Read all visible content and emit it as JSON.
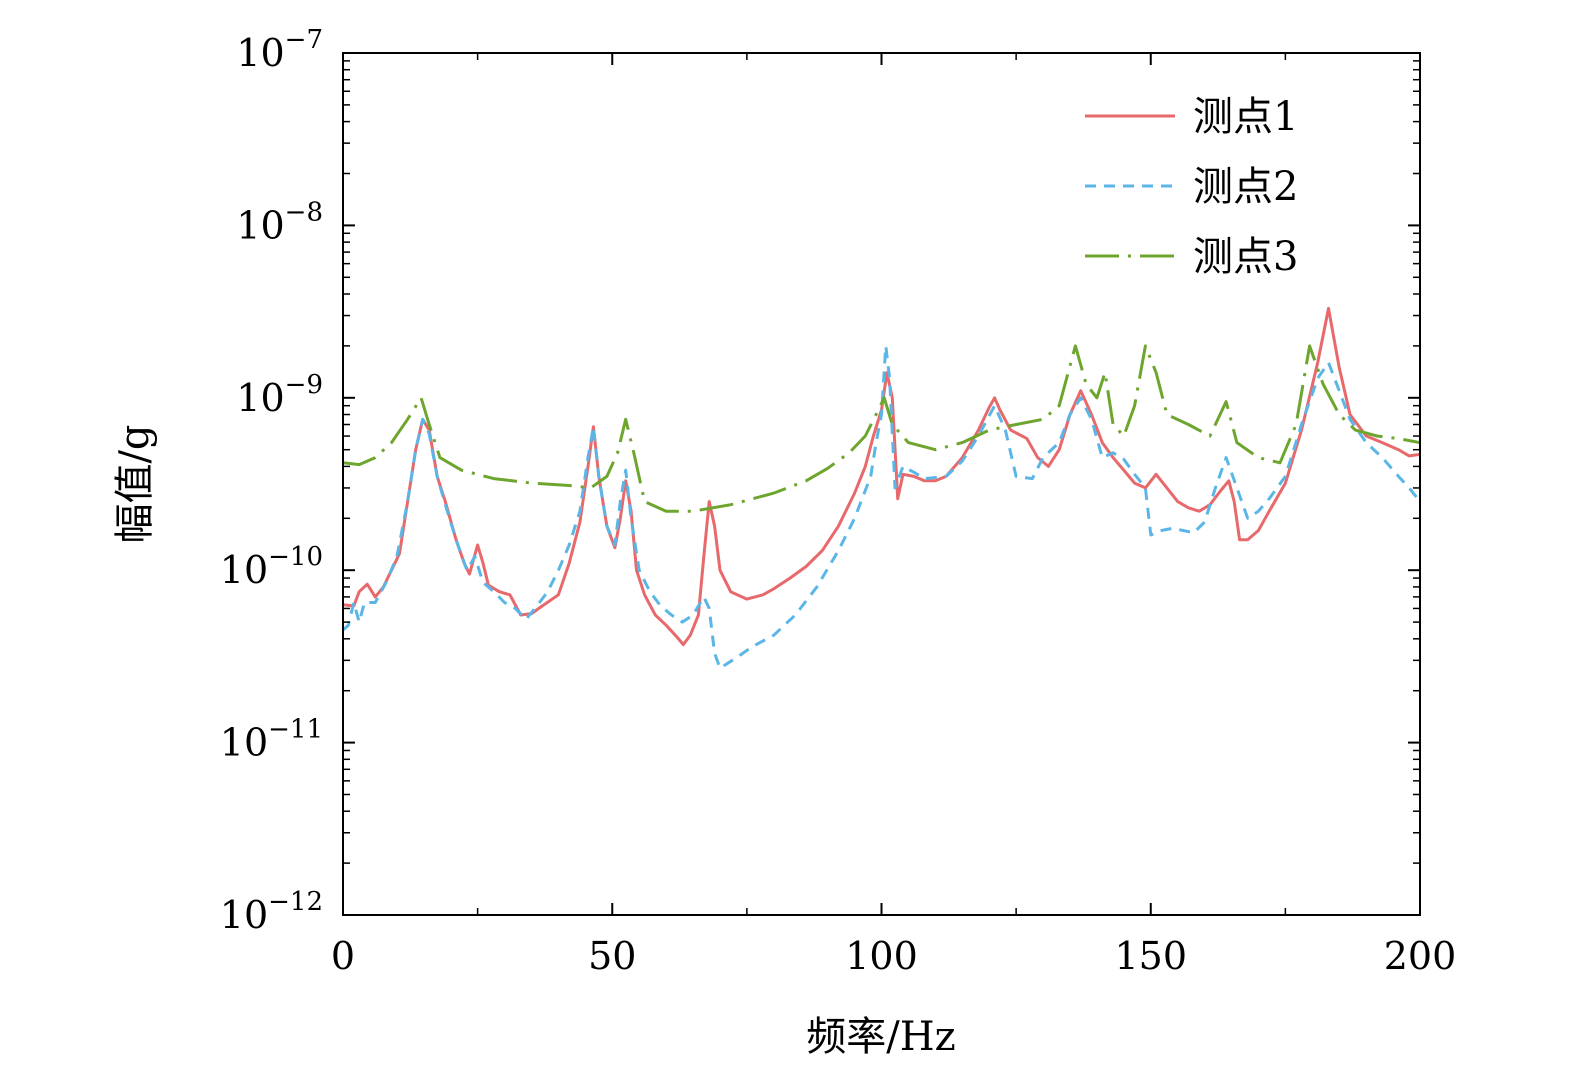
{
  "chart_data": {
    "type": "line",
    "xlabel": "频率/Hz",
    "ylabel": "幅值/g",
    "xlim": [
      0,
      200
    ],
    "ylim": [
      1e-12,
      1e-07
    ],
    "yscale": "log",
    "grid": false,
    "legend_position": "top-right",
    "x_ticks": [
      0,
      50,
      100,
      150,
      200
    ],
    "x_tick_labels": [
      "0",
      "50",
      "100",
      "150",
      "200"
    ],
    "y_ticks": [
      {
        "value": 1e-12,
        "base": "10",
        "exp": "−12"
      },
      {
        "value": 1e-11,
        "base": "10",
        "exp": "−11"
      },
      {
        "value": 1e-10,
        "base": "10",
        "exp": "−10"
      },
      {
        "value": 1e-09,
        "base": "10",
        "exp": "−9"
      },
      {
        "value": 1e-08,
        "base": "10",
        "exp": "−8"
      },
      {
        "value": 1e-07,
        "base": "10",
        "exp": "−7"
      }
    ],
    "series": [
      {
        "name": "测点1",
        "color": "#e8696b",
        "dash": "solid",
        "points": [
          [
            0,
            6.3e-11
          ],
          [
            2,
            6.2e-11
          ],
          [
            3,
            7.5e-11
          ],
          [
            4.5,
            8.3e-11
          ],
          [
            6,
            7e-11
          ],
          [
            7.5,
            8e-11
          ],
          [
            9,
            1e-10
          ],
          [
            10.5,
            1.25e-10
          ],
          [
            12,
            2.5e-10
          ],
          [
            13.5,
            5e-10
          ],
          [
            14.8,
            7.5e-10
          ],
          [
            16,
            6.5e-10
          ],
          [
            17.5,
            3.5e-10
          ],
          [
            19,
            2.5e-10
          ],
          [
            21,
            1.5e-10
          ],
          [
            22.5,
            1.1e-10
          ],
          [
            23.5,
            9.5e-11
          ],
          [
            25,
            1.4e-10
          ],
          [
            26,
            1.1e-10
          ],
          [
            27,
            8.2e-11
          ],
          [
            29,
            7.5e-11
          ],
          [
            31,
            7.2e-11
          ],
          [
            33,
            5.5e-11
          ],
          [
            35,
            5.6e-11
          ],
          [
            37,
            6.2e-11
          ],
          [
            40,
            7.2e-11
          ],
          [
            42,
            1.1e-10
          ],
          [
            44,
            1.9e-10
          ],
          [
            45.5,
            4e-10
          ],
          [
            46.5,
            6.8e-10
          ],
          [
            47.5,
            3.5e-10
          ],
          [
            49,
            1.8e-10
          ],
          [
            50.5,
            1.35e-10
          ],
          [
            51.5,
            2e-10
          ],
          [
            52.5,
            3.3e-10
          ],
          [
            53.5,
            2.2e-10
          ],
          [
            54.5,
            1e-10
          ],
          [
            56,
            7.2e-11
          ],
          [
            58,
            5.5e-11
          ],
          [
            60,
            4.8e-11
          ],
          [
            62,
            4.1e-11
          ],
          [
            63.2,
            3.7e-11
          ],
          [
            64.5,
            4.2e-11
          ],
          [
            66,
            5.5e-11
          ],
          [
            67,
            1.2e-10
          ],
          [
            68,
            2.5e-10
          ],
          [
            69,
            1.8e-10
          ],
          [
            70,
            1e-10
          ],
          [
            72,
            7.5e-11
          ],
          [
            75,
            6.8e-11
          ],
          [
            78,
            7.2e-11
          ],
          [
            80,
            7.8e-11
          ],
          [
            83,
            9e-11
          ],
          [
            86,
            1.05e-10
          ],
          [
            89,
            1.3e-10
          ],
          [
            92,
            1.8e-10
          ],
          [
            95,
            2.8e-10
          ],
          [
            97,
            4e-10
          ],
          [
            98.5,
            6e-10
          ],
          [
            100,
            8.5e-10
          ],
          [
            101,
            1.4e-09
          ],
          [
            102,
            1e-09
          ],
          [
            103,
            2.6e-10
          ],
          [
            104,
            3.6e-10
          ],
          [
            106,
            3.5e-10
          ],
          [
            108,
            3.3e-10
          ],
          [
            110,
            3.3e-10
          ],
          [
            112,
            3.5e-10
          ],
          [
            115,
            4.5e-10
          ],
          [
            118,
            6.5e-10
          ],
          [
            120,
            8.8e-10
          ],
          [
            121,
            1e-09
          ],
          [
            122,
            8.5e-10
          ],
          [
            124,
            6.5e-10
          ],
          [
            127,
            5.8e-10
          ],
          [
            129,
            4.5e-10
          ],
          [
            131,
            4e-10
          ],
          [
            133,
            5e-10
          ],
          [
            135,
            8e-10
          ],
          [
            137,
            1.1e-09
          ],
          [
            139,
            8e-10
          ],
          [
            141,
            5.5e-10
          ],
          [
            143,
            4.5e-10
          ],
          [
            145,
            3.8e-10
          ],
          [
            147,
            3.2e-10
          ],
          [
            149,
            3e-10
          ],
          [
            151,
            3.6e-10
          ],
          [
            153,
            3e-10
          ],
          [
            155,
            2.5e-10
          ],
          [
            157,
            2.3e-10
          ],
          [
            159,
            2.2e-10
          ],
          [
            161,
            2.4e-10
          ],
          [
            163,
            2.9e-10
          ],
          [
            164.5,
            3.3e-10
          ],
          [
            165.5,
            2.5e-10
          ],
          [
            166.5,
            1.5e-10
          ],
          [
            168,
            1.5e-10
          ],
          [
            170,
            1.7e-10
          ],
          [
            172,
            2.2e-10
          ],
          [
            175,
            3.2e-10
          ],
          [
            178,
            6.5e-10
          ],
          [
            181,
            1.6e-09
          ],
          [
            183,
            3.3e-09
          ],
          [
            185,
            1.5e-09
          ],
          [
            187,
            8e-10
          ],
          [
            190,
            6e-10
          ],
          [
            193,
            5.5e-10
          ],
          [
            196,
            5e-10
          ],
          [
            198,
            4.6e-10
          ],
          [
            200,
            4.7e-10
          ]
        ]
      },
      {
        "name": "测点2",
        "color": "#5bb6e8",
        "dash": "dashed",
        "points": [
          [
            0,
            4.5e-11
          ],
          [
            1,
            4.8e-11
          ],
          [
            2,
            6.5e-11
          ],
          [
            3,
            5e-11
          ],
          [
            4,
            6.5e-11
          ],
          [
            6,
            6.5e-11
          ],
          [
            8,
            8.5e-11
          ],
          [
            10,
            1.2e-10
          ],
          [
            12,
            2.5e-10
          ],
          [
            13.5,
            5e-10
          ],
          [
            14.8,
            7.5e-10
          ],
          [
            16,
            6.2e-10
          ],
          [
            17.5,
            3.5e-10
          ],
          [
            19,
            2.4e-10
          ],
          [
            21,
            1.5e-10
          ],
          [
            23,
            1e-10
          ],
          [
            24.5,
            1.2e-10
          ],
          [
            26,
            8.5e-11
          ],
          [
            28,
            7.5e-11
          ],
          [
            30,
            6.5e-11
          ],
          [
            32,
            6e-11
          ],
          [
            34,
            5.2e-11
          ],
          [
            36,
            6.2e-11
          ],
          [
            38,
            7.5e-11
          ],
          [
            40,
            1e-10
          ],
          [
            42,
            1.4e-10
          ],
          [
            44,
            2.2e-10
          ],
          [
            45.5,
            4.5e-10
          ],
          [
            46.5,
            6.8e-10
          ],
          [
            47.5,
            3.5e-10
          ],
          [
            49,
            1.8e-10
          ],
          [
            50.5,
            1.4e-10
          ],
          [
            51.5,
            2.5e-10
          ],
          [
            52.5,
            3.8e-10
          ],
          [
            53.5,
            2e-10
          ],
          [
            55,
            1e-10
          ],
          [
            57,
            7.5e-11
          ],
          [
            59,
            6.2e-11
          ],
          [
            61,
            5.5e-11
          ],
          [
            63,
            5e-11
          ],
          [
            65,
            5.5e-11
          ],
          [
            67,
            7e-11
          ],
          [
            68,
            6e-11
          ],
          [
            69,
            3.3e-11
          ],
          [
            70,
            2.7e-11
          ],
          [
            73,
            3.1e-11
          ],
          [
            76,
            3.6e-11
          ],
          [
            80,
            4.2e-11
          ],
          [
            84,
            5.5e-11
          ],
          [
            88,
            8e-11
          ],
          [
            92,
            1.3e-10
          ],
          [
            95,
            2e-10
          ],
          [
            98,
            3.5e-10
          ],
          [
            99,
            5.5e-10
          ],
          [
            100,
            8e-10
          ],
          [
            100.8,
            2e-09
          ],
          [
            101.5,
            1.3e-09
          ],
          [
            102.5,
            3e-10
          ],
          [
            104,
            4e-10
          ],
          [
            106,
            3.7e-10
          ],
          [
            108,
            3.4e-10
          ],
          [
            112,
            3.5e-10
          ],
          [
            115,
            4.3e-10
          ],
          [
            118,
            6e-10
          ],
          [
            121,
            9e-10
          ],
          [
            123,
            6.5e-10
          ],
          [
            125,
            3.5e-10
          ],
          [
            128,
            3.4e-10
          ],
          [
            130,
            4.5e-10
          ],
          [
            133,
            5.5e-10
          ],
          [
            135,
            8e-10
          ],
          [
            137,
            1e-09
          ],
          [
            139,
            7.5e-10
          ],
          [
            141,
            4.5e-10
          ],
          [
            143,
            4.8e-10
          ],
          [
            145,
            4.4e-10
          ],
          [
            147,
            3.6e-10
          ],
          [
            149,
            3e-10
          ],
          [
            150,
            1.6e-10
          ],
          [
            152,
            1.7e-10
          ],
          [
            154,
            1.75e-10
          ],
          [
            156,
            1.7e-10
          ],
          [
            158,
            1.65e-10
          ],
          [
            160,
            1.9e-10
          ],
          [
            162,
            3e-10
          ],
          [
            164,
            4.5e-10
          ],
          [
            166,
            3e-10
          ],
          [
            168,
            2e-10
          ],
          [
            170,
            2.2e-10
          ],
          [
            172,
            2.6e-10
          ],
          [
            175,
            3.5e-10
          ],
          [
            178,
            7e-10
          ],
          [
            181,
            1.3e-09
          ],
          [
            183,
            1.6e-09
          ],
          [
            185,
            1.1e-09
          ],
          [
            187,
            7.5e-10
          ],
          [
            190,
            5.5e-10
          ],
          [
            193,
            4.5e-10
          ],
          [
            196,
            3.5e-10
          ],
          [
            198,
            3e-10
          ],
          [
            200,
            2.5e-10
          ]
        ]
      },
      {
        "name": "测点3",
        "color": "#6ea52e",
        "dash": "dashdot",
        "points": [
          [
            0,
            4.2e-10
          ],
          [
            3,
            4.1e-10
          ],
          [
            6,
            4.5e-10
          ],
          [
            9,
            5.5e-10
          ],
          [
            12,
            7.5e-10
          ],
          [
            14.5,
            1e-09
          ],
          [
            16,
            7e-10
          ],
          [
            18,
            4.5e-10
          ],
          [
            22,
            3.8e-10
          ],
          [
            28,
            3.4e-10
          ],
          [
            35,
            3.2e-10
          ],
          [
            42,
            3.1e-10
          ],
          [
            46,
            3e-10
          ],
          [
            49,
            3.5e-10
          ],
          [
            51,
            4.8e-10
          ],
          [
            52.5,
            7.5e-10
          ],
          [
            54,
            4.8e-10
          ],
          [
            56,
            2.5e-10
          ],
          [
            60,
            2.2e-10
          ],
          [
            65,
            2.2e-10
          ],
          [
            72,
            2.4e-10
          ],
          [
            80,
            2.8e-10
          ],
          [
            86,
            3.3e-10
          ],
          [
            90,
            3.9e-10
          ],
          [
            94,
            4.8e-10
          ],
          [
            97,
            6e-10
          ],
          [
            99,
            8e-10
          ],
          [
            100.5,
            1e-09
          ],
          [
            102,
            7e-10
          ],
          [
            105,
            5.5e-10
          ],
          [
            110,
            5e-10
          ],
          [
            115,
            5.5e-10
          ],
          [
            120,
            6.5e-10
          ],
          [
            125,
            7e-10
          ],
          [
            130,
            7.5e-10
          ],
          [
            133,
            9e-10
          ],
          [
            136,
            2e-09
          ],
          [
            138,
            1.2e-09
          ],
          [
            140,
            1e-09
          ],
          [
            141.5,
            1.4e-09
          ],
          [
            143,
            7e-10
          ],
          [
            145,
            6e-10
          ],
          [
            147,
            9e-10
          ],
          [
            149,
            2e-09
          ],
          [
            151,
            1.4e-09
          ],
          [
            153,
            8e-10
          ],
          [
            157,
            7e-10
          ],
          [
            161,
            6e-10
          ],
          [
            164,
            9.5e-10
          ],
          [
            166,
            5.5e-10
          ],
          [
            170,
            4.5e-10
          ],
          [
            174,
            4.2e-10
          ],
          [
            177,
            7e-10
          ],
          [
            179.5,
            2e-09
          ],
          [
            182,
            1.2e-09
          ],
          [
            185,
            8e-10
          ],
          [
            188,
            6.5e-10
          ],
          [
            192,
            6e-10
          ],
          [
            196,
            5.8e-10
          ],
          [
            200,
            5.5e-10
          ]
        ]
      }
    ]
  }
}
